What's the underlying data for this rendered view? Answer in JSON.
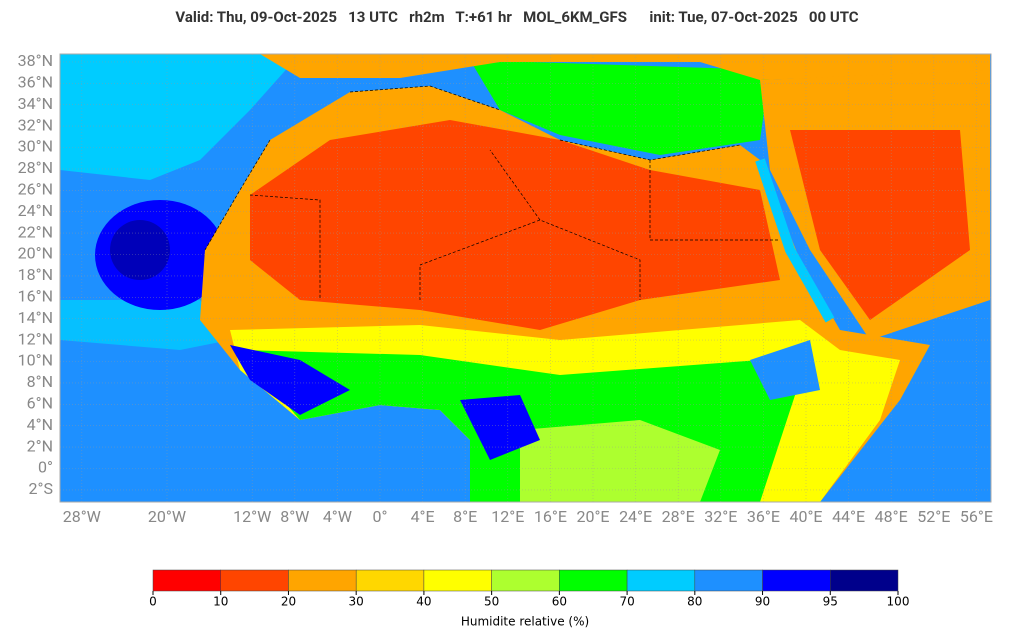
{
  "header": {
    "title": "Valid: Thu, 09-Oct-2025   13 UTC   rh2m   T:+61 hr   MOL_6KM_GFS      init: Tue, 07-Oct-2025   00 UTC"
  },
  "map": {
    "lat_ticks": [
      {
        "value": 38,
        "label": "38°N"
      },
      {
        "value": 36,
        "label": "36°N"
      },
      {
        "value": 34,
        "label": "34°N"
      },
      {
        "value": 32,
        "label": "32°N"
      },
      {
        "value": 30,
        "label": "30°N"
      },
      {
        "value": 28,
        "label": "28°N"
      },
      {
        "value": 26,
        "label": "26°N"
      },
      {
        "value": 24,
        "label": "24°N"
      },
      {
        "value": 22,
        "label": "22°N"
      },
      {
        "value": 20,
        "label": "20°N"
      },
      {
        "value": 18,
        "label": "18°N"
      },
      {
        "value": 16,
        "label": "16°N"
      },
      {
        "value": 14,
        "label": "14°N"
      },
      {
        "value": 12,
        "label": "12°N"
      },
      {
        "value": 10,
        "label": "10°N"
      },
      {
        "value": 8,
        "label": "8°N"
      },
      {
        "value": 6,
        "label": "6°N"
      },
      {
        "value": 4,
        "label": "4°N"
      },
      {
        "value": 2,
        "label": "2°N"
      },
      {
        "value": 0,
        "label": "0°"
      },
      {
        "value": -2,
        "label": "2°S"
      }
    ],
    "lon_ticks": [
      {
        "value": -28,
        "label": "28°W"
      },
      {
        "value": -20,
        "label": "20°W"
      },
      {
        "value": -12,
        "label": "12°W"
      },
      {
        "value": -8,
        "label": "8°W"
      },
      {
        "value": -4,
        "label": "4°W"
      },
      {
        "value": 0,
        "label": "0°"
      },
      {
        "value": 4,
        "label": "4°E"
      },
      {
        "value": 8,
        "label": "8°E"
      },
      {
        "value": 12,
        "label": "12°E"
      },
      {
        "value": 16,
        "label": "16°E"
      },
      {
        "value": 20,
        "label": "20°E"
      },
      {
        "value": 24,
        "label": "24°E"
      },
      {
        "value": 28,
        "label": "28°E"
      },
      {
        "value": 32,
        "label": "32°E"
      },
      {
        "value": 36,
        "label": "36°E"
      },
      {
        "value": 40,
        "label": "40°E"
      },
      {
        "value": 44,
        "label": "44°E"
      },
      {
        "value": 48,
        "label": "48°E"
      },
      {
        "value": 52,
        "label": "52°E"
      },
      {
        "value": 56,
        "label": "56°E"
      }
    ]
  },
  "colorbar": {
    "ticks": [
      0,
      10,
      20,
      30,
      40,
      50,
      60,
      70,
      80,
      90,
      95,
      100
    ],
    "colors": [
      "#ff0000",
      "#ff4500",
      "#ffa500",
      "#ffd700",
      "#ffff00",
      "#adff2f",
      "#00ff00",
      "#00ccff",
      "#1e90ff",
      "#0000ff",
      "#00008b"
    ],
    "label": "Humidite relative (%)"
  }
}
